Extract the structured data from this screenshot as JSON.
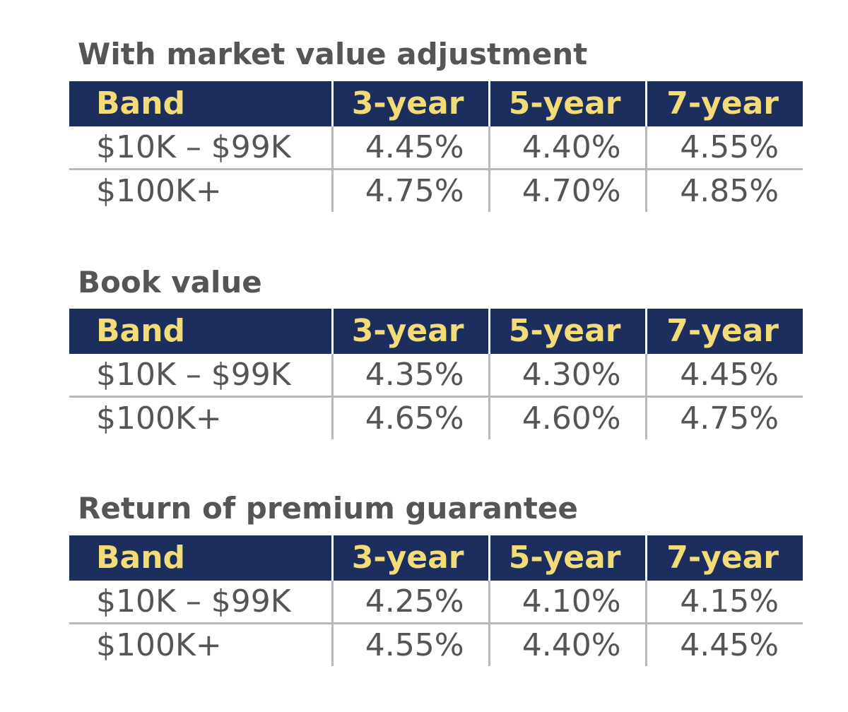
{
  "tables": [
    {
      "title": "With market value adjustment",
      "header": {
        "band": "Band",
        "terms": [
          "3-year",
          "5-year",
          "7-year"
        ]
      },
      "rows": [
        {
          "band": "$10K – $99K",
          "rates": [
            "4.45%",
            "4.40%",
            "4.55%"
          ]
        },
        {
          "band": "$100K+",
          "rates": [
            "4.75%",
            "4.70%",
            "4.85%"
          ]
        }
      ]
    },
    {
      "title": "Book value",
      "header": {
        "band": "Band",
        "terms": [
          "3-year",
          "5-year",
          "7-year"
        ]
      },
      "rows": [
        {
          "band": "$10K – $99K",
          "rates": [
            "4.35%",
            "4.30%",
            "4.45%"
          ]
        },
        {
          "band": "$100K+",
          "rates": [
            "4.65%",
            "4.60%",
            "4.75%"
          ]
        }
      ]
    },
    {
      "title": "Return of premium guarantee",
      "header": {
        "band": "Band",
        "terms": [
          "3-year",
          "5-year",
          "7-year"
        ]
      },
      "rows": [
        {
          "band": "$10K – $99K",
          "rates": [
            "4.25%",
            "4.10%",
            "4.15%"
          ]
        },
        {
          "band": "$100K+",
          "rates": [
            "4.55%",
            "4.40%",
            "4.45%"
          ]
        }
      ]
    }
  ],
  "colors": {
    "header_background": "#1c2e5e",
    "header_text": "#f3dc78",
    "body_text": "#555555",
    "rule": "#b8b8b8"
  }
}
